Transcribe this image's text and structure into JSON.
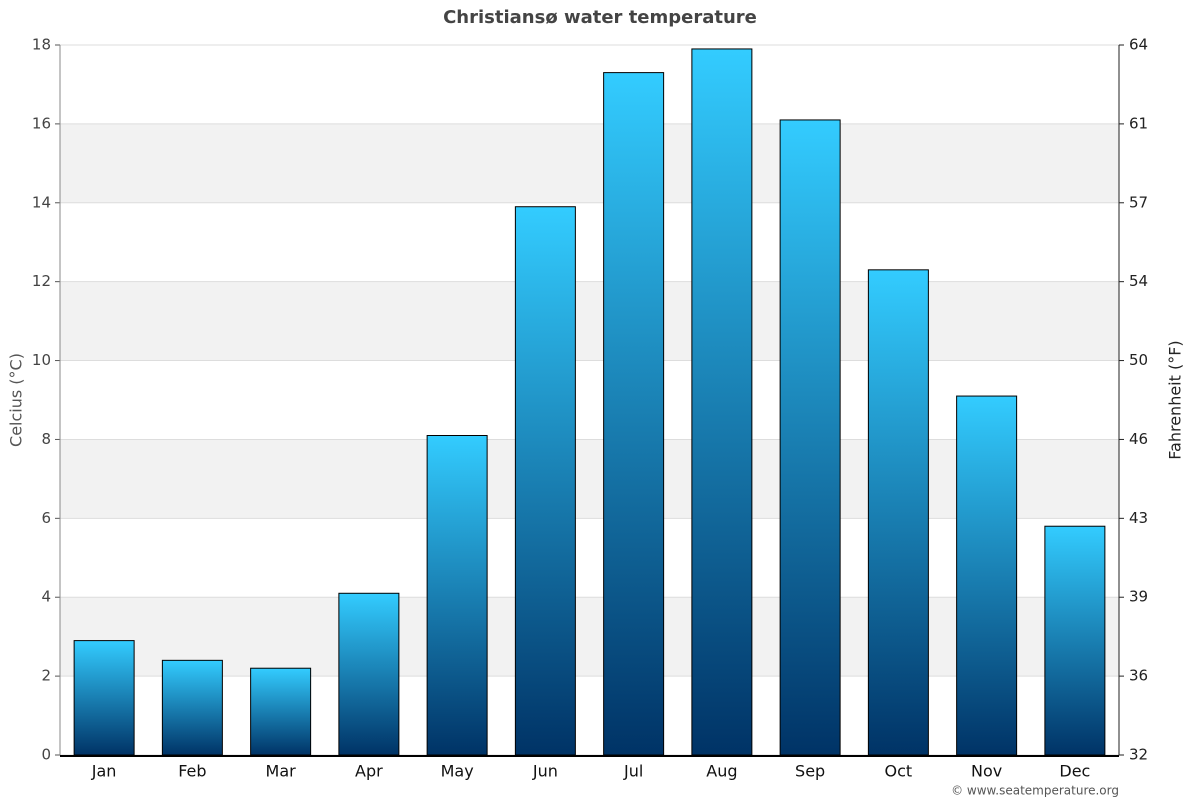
{
  "chart_data": {
    "type": "bar",
    "title": "Christiansø water temperature",
    "categories": [
      "Jan",
      "Feb",
      "Mar",
      "Apr",
      "May",
      "Jun",
      "Jul",
      "Aug",
      "Sep",
      "Oct",
      "Nov",
      "Dec"
    ],
    "values": [
      2.9,
      2.4,
      2.2,
      4.1,
      8.1,
      13.9,
      17.3,
      17.9,
      16.1,
      12.3,
      9.1,
      5.8
    ],
    "gradient": [
      "#33ccff",
      "#003366"
    ],
    "ylabel": "Celcius (°C)",
    "y2label": "Fahrenheit (°F)",
    "ylim": [
      0,
      18
    ],
    "yticks": [
      0,
      2,
      4,
      6,
      8,
      10,
      12,
      14,
      16,
      18
    ],
    "y2lim": [
      32,
      64.4
    ],
    "y2ticks": [
      32,
      {
        "value": 35.6,
        "label": "36"
      },
      {
        "value": 39.2,
        "label": "39"
      },
      {
        "value": 42.8,
        "label": "43"
      },
      {
        "value": 46.4,
        "label": "46"
      },
      50,
      {
        "value": 53.6,
        "label": "54"
      },
      {
        "value": 57.2,
        "label": "57"
      },
      {
        "value": 60.8,
        "label": "61"
      },
      {
        "value": 64.4,
        "label": "64"
      }
    ],
    "grid": true,
    "band_color": "#f2f2f2",
    "credit": "© www.seatemperature.org"
  }
}
